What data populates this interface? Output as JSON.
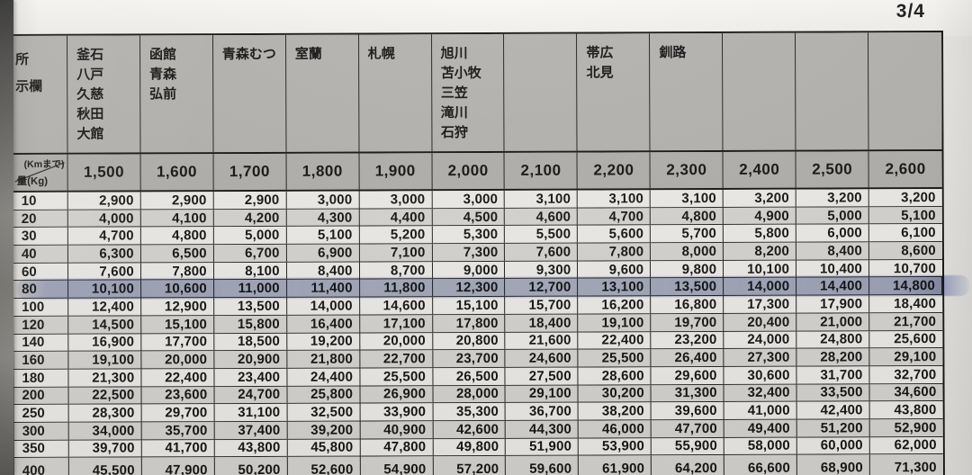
{
  "page": {
    "page_indicator": "3/4"
  },
  "colors": {
    "highlight_marker": "#7c8cc6",
    "header_bg": "#b4b2ae",
    "row_white": "#edebe7",
    "row_gray": "#d6d4d0",
    "border": "#161616"
  },
  "table": {
    "corner": {
      "row_header_label": "所\n示欄",
      "top_label": "(Kmまで)",
      "bottom_label": "量(Kg)"
    },
    "columns": [
      {
        "distance": "1,500",
        "destinations": "釜石\n八戸\n久慈\n秋田\n大館"
      },
      {
        "distance": "1,600",
        "destinations": "函館\n青森\n弘前"
      },
      {
        "distance": "1,700",
        "destinations": "青森むつ"
      },
      {
        "distance": "1,800",
        "destinations": "室蘭"
      },
      {
        "distance": "1,900",
        "destinations": "札幌"
      },
      {
        "distance": "2,000",
        "destinations": "旭川\n苫小牧\n三笠\n滝川\n石狩"
      },
      {
        "distance": "2,100",
        "destinations": ""
      },
      {
        "distance": "2,200",
        "destinations": "帯広\n北見"
      },
      {
        "distance": "2,300",
        "destinations": "釧路"
      },
      {
        "distance": "2,400",
        "destinations": ""
      },
      {
        "distance": "2,500",
        "destinations": ""
      },
      {
        "distance": "2,600",
        "destinations": ""
      }
    ],
    "rows": [
      {
        "weight": "10",
        "highlighted": false,
        "values": [
          "2,900",
          "2,900",
          "2,900",
          "3,000",
          "3,000",
          "3,000",
          "3,100",
          "3,100",
          "3,100",
          "3,200",
          "3,200",
          "3,200"
        ]
      },
      {
        "weight": "20",
        "highlighted": false,
        "values": [
          "4,000",
          "4,100",
          "4,200",
          "4,300",
          "4,400",
          "4,500",
          "4,600",
          "4,700",
          "4,800",
          "4,900",
          "5,000",
          "5,100"
        ]
      },
      {
        "weight": "30",
        "highlighted": false,
        "values": [
          "4,700",
          "4,800",
          "5,000",
          "5,100",
          "5,200",
          "5,300",
          "5,500",
          "5,600",
          "5,700",
          "5,800",
          "6,000",
          "6,100"
        ]
      },
      {
        "weight": "40",
        "highlighted": false,
        "values": [
          "6,300",
          "6,500",
          "6,700",
          "6,900",
          "7,100",
          "7,300",
          "7,600",
          "7,800",
          "8,000",
          "8,200",
          "8,400",
          "8,600"
        ]
      },
      {
        "weight": "60",
        "highlighted": false,
        "values": [
          "7,600",
          "7,800",
          "8,100",
          "8,400",
          "8,700",
          "9,000",
          "9,300",
          "9,600",
          "9,800",
          "10,100",
          "10,400",
          "10,700"
        ]
      },
      {
        "weight": "80",
        "highlighted": true,
        "values": [
          "10,100",
          "10,600",
          "11,000",
          "11,400",
          "11,800",
          "12,300",
          "12,700",
          "13,100",
          "13,500",
          "14,000",
          "14,400",
          "14,800"
        ]
      },
      {
        "weight": "100",
        "highlighted": false,
        "values": [
          "12,400",
          "12,900",
          "13,500",
          "14,000",
          "14,600",
          "15,100",
          "15,700",
          "16,200",
          "16,800",
          "17,300",
          "17,900",
          "18,400"
        ]
      },
      {
        "weight": "120",
        "highlighted": false,
        "values": [
          "14,500",
          "15,100",
          "15,800",
          "16,400",
          "17,100",
          "17,800",
          "18,400",
          "19,100",
          "19,700",
          "20,400",
          "21,000",
          "21,700"
        ]
      },
      {
        "weight": "140",
        "highlighted": false,
        "values": [
          "16,900",
          "17,700",
          "18,500",
          "19,200",
          "20,000",
          "20,800",
          "21,600",
          "22,400",
          "23,200",
          "24,000",
          "24,800",
          "25,600"
        ]
      },
      {
        "weight": "160",
        "highlighted": false,
        "values": [
          "19,100",
          "20,000",
          "20,900",
          "21,800",
          "22,700",
          "23,700",
          "24,600",
          "25,500",
          "26,400",
          "27,300",
          "28,200",
          "29,100"
        ]
      },
      {
        "weight": "180",
        "highlighted": false,
        "values": [
          "21,300",
          "22,400",
          "23,400",
          "24,400",
          "25,500",
          "26,500",
          "27,500",
          "28,600",
          "29,600",
          "30,600",
          "31,700",
          "32,700"
        ]
      },
      {
        "weight": "200",
        "highlighted": false,
        "values": [
          "22,500",
          "23,600",
          "24,700",
          "25,800",
          "26,900",
          "28,000",
          "29,100",
          "30,200",
          "31,300",
          "32,400",
          "33,500",
          "34,600"
        ]
      },
      {
        "weight": "250",
        "highlighted": false,
        "values": [
          "28,300",
          "29,700",
          "31,100",
          "32,500",
          "33,900",
          "35,300",
          "36,700",
          "38,200",
          "39,600",
          "41,000",
          "42,400",
          "43,800"
        ]
      },
      {
        "weight": "300",
        "highlighted": false,
        "values": [
          "34,000",
          "35,700",
          "37,400",
          "39,200",
          "40,900",
          "42,600",
          "44,300",
          "46,000",
          "47,700",
          "49,400",
          "51,200",
          "52,900"
        ]
      },
      {
        "weight": "350",
        "highlighted": false,
        "values": [
          "39,700",
          "41,700",
          "43,800",
          "45,800",
          "47,800",
          "49,800",
          "51,900",
          "53,900",
          "55,900",
          "58,000",
          "60,000",
          "62,000"
        ]
      },
      {
        "weight": "400",
        "highlighted": false,
        "values": [
          "45,500",
          "47,900",
          "50,200",
          "52,600",
          "54,900",
          "57,200",
          "59,600",
          "61,900",
          "64,200",
          "66,600",
          "68,900",
          "71,300"
        ]
      }
    ]
  }
}
